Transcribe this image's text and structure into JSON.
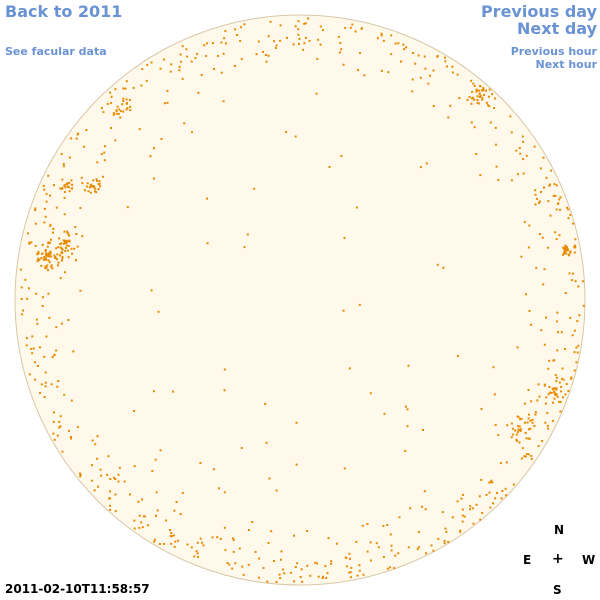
{
  "navigation": {
    "back_label": "Back to 2011",
    "facular_label": "See facular data",
    "prev_day_label": "Previous day",
    "next_day_label": "Next day",
    "prev_hour_label": "Previous hour",
    "next_hour_label": "Next hour"
  },
  "timestamp": "2011-02-10T11:58:57",
  "compass": {
    "north": "N",
    "east": "E",
    "center": "+",
    "west": "W",
    "south": "S"
  },
  "colors": {
    "link": "#6a93d4",
    "disk_fill": "#fff9ec",
    "disk_edge": "#d9c7a6",
    "network_speck": "#e88a00"
  }
}
